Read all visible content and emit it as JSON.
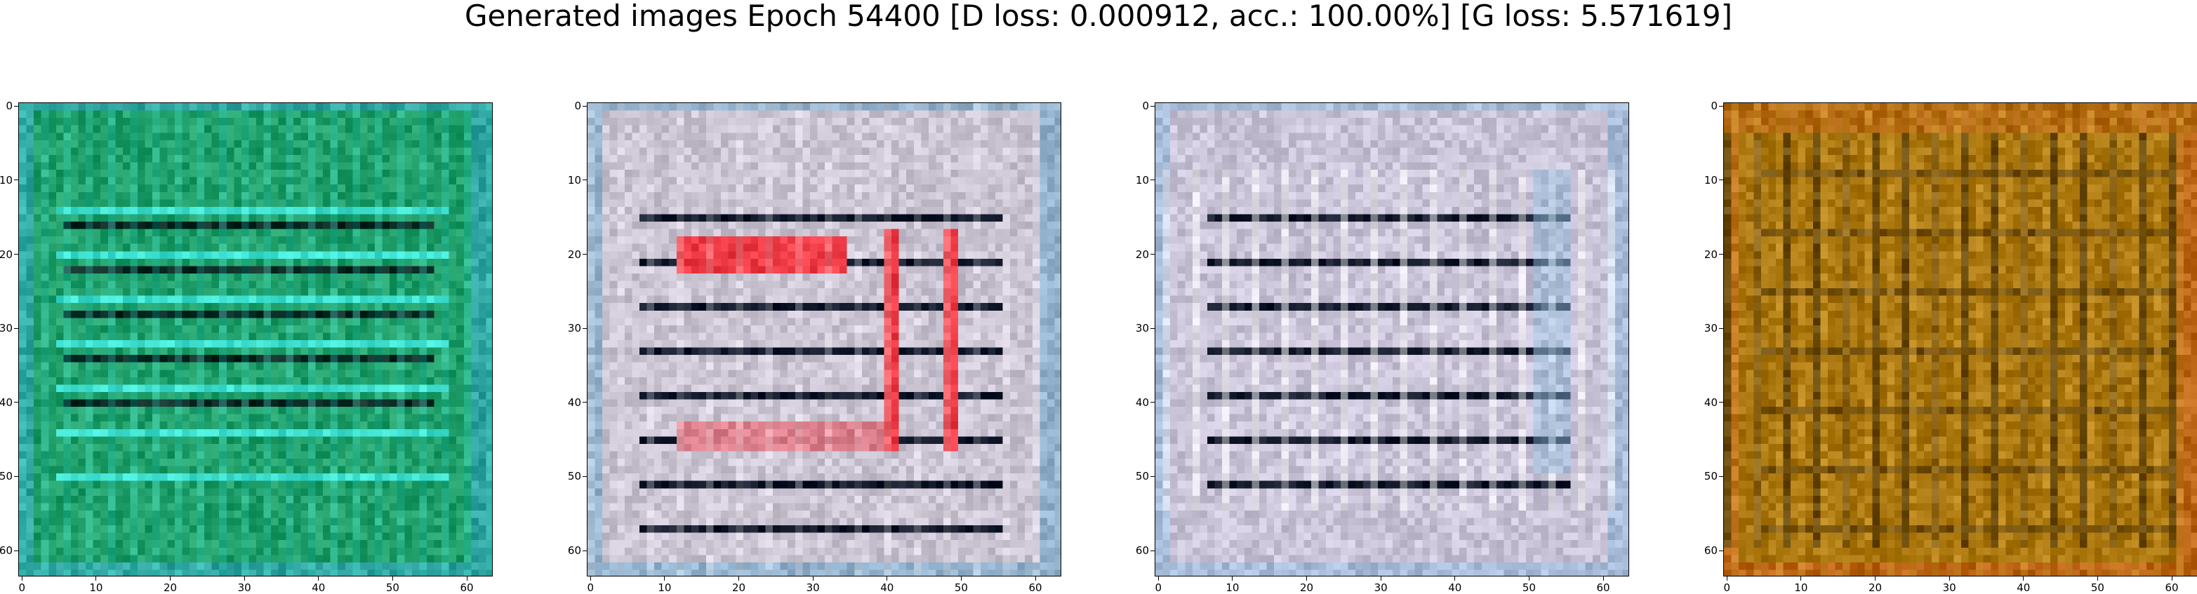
{
  "figure": {
    "title": "Generated images Epoch 54400 [D loss: 0.000912, acc.: 100.00%] [G loss: 5.571619]"
  },
  "axes": {
    "x_ticks": [
      "0",
      "10",
      "20",
      "30",
      "40",
      "50",
      "60"
    ],
    "y_ticks": [
      "0",
      "10",
      "20",
      "30",
      "40",
      "50",
      "60"
    ],
    "x_tick_values": [
      0,
      10,
      20,
      30,
      40,
      50,
      60
    ],
    "y_tick_values": [
      0,
      10,
      20,
      30,
      40,
      50,
      60
    ],
    "xlim": [
      -0.5,
      63.5
    ],
    "ylim": [
      63.5,
      -0.5
    ]
  },
  "panels": [
    {
      "name": "generated-image-1",
      "palette": {
        "base": "#1f9e6a",
        "accent": "#3fe0d0",
        "dark": "#0a2a24",
        "edge": "#3aa7c4"
      },
      "pattern": "green-stripes"
    },
    {
      "name": "generated-image-2",
      "palette": {
        "base": "#c9c3d2",
        "accent": "#ef3b46",
        "dark": "#121a2c",
        "edge": "#6fa7c9"
      },
      "pattern": "gray-with-red"
    },
    {
      "name": "generated-image-3",
      "palette": {
        "base": "#c8c3d6",
        "accent": "#ffffff",
        "dark": "#141c2e",
        "edge": "#8fb7d9"
      },
      "pattern": "gray-lavender"
    },
    {
      "name": "generated-image-4",
      "palette": {
        "base": "#a9760e",
        "accent": "#d6a032",
        "dark": "#3a2a08",
        "edge": "#c75a1a"
      },
      "pattern": "amber-grid"
    }
  ]
}
